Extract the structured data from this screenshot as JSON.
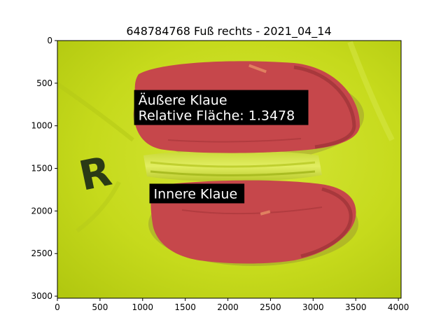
{
  "title": "648784768 Fuß rechts - 2021_04_14",
  "image": {
    "extent_x": [
      0,
      4032
    ],
    "extent_y": [
      0,
      3024
    ],
    "marker_letter": "R",
    "background_color": "#c8dc1e",
    "segment_color": "#c8464a"
  },
  "axes": {
    "x_ticks": [
      0,
      500,
      1000,
      1500,
      2000,
      2500,
      3000,
      3500,
      4000
    ],
    "x_tick_labels": [
      "0",
      "500",
      "1000",
      "1500",
      "2000",
      "2500",
      "3000",
      "3500",
      "4000"
    ],
    "y_ticks": [
      0,
      500,
      1000,
      1500,
      2000,
      2500,
      3000
    ],
    "y_tick_labels": [
      "0",
      "500",
      "1000",
      "1500",
      "2000",
      "2500",
      "3000"
    ]
  },
  "annotations": [
    {
      "lines": [
        "Äußere Klaue",
        "Relative Fläche: 1.3478"
      ],
      "x": 900,
      "y": 580
    },
    {
      "lines": [
        "Innere Klaue"
      ],
      "x": 1080,
      "y": 1680
    }
  ]
}
